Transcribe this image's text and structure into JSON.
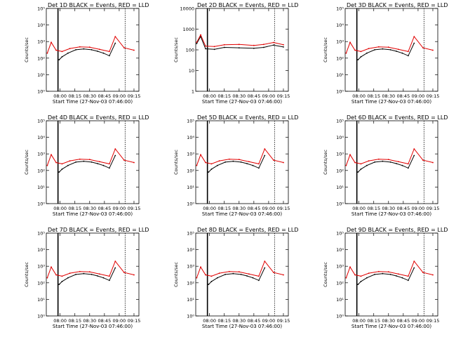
{
  "figure": {
    "xlabel": "Start Time (27-Nov-03 07:46:00)",
    "ylabel": "Counts/sec",
    "x_tick_labels": [
      "08:00",
      "08:15",
      "08:30",
      "08:45",
      "09:00",
      "09:15"
    ],
    "series_colors": {
      "events": "#000000",
      "lld": "#e00000"
    }
  },
  "chart_data": [
    {
      "type": "line",
      "scale": "log",
      "ylim": [
        1,
        100000
      ],
      "title": "Det 1D BLACK = Events, RED = LLD",
      "y_tick_labels": [
        "10⁰",
        "10¹",
        "10²",
        "10³",
        "10⁴",
        "10⁵"
      ],
      "x_range": [
        "07:46",
        "09:20"
      ],
      "x_ticks": [
        "08:00",
        "08:15",
        "08:30",
        "08:45",
        "09:00",
        "09:15"
      ],
      "series": [
        {
          "name": "Events",
          "color": "#000000",
          "x": [
            "07:59",
            "08:02",
            "08:08",
            "08:16",
            "08:24",
            "08:32",
            "08:38",
            "08:44",
            "08:50",
            "08:56"
          ],
          "values": [
            80,
            120,
            200,
            320,
            360,
            320,
            260,
            200,
            140,
            800
          ]
        },
        {
          "name": "LLD",
          "color": "#e00000",
          "x": [
            "07:47",
            "07:51",
            "07:56",
            "08:02",
            "08:10",
            "08:20",
            "08:30",
            "08:40",
            "08:50",
            "08:56",
            "09:05",
            "09:15"
          ],
          "values": [
            200,
            900,
            300,
            250,
            380,
            480,
            460,
            340,
            250,
            2000,
            420,
            300
          ]
        }
      ]
    },
    {
      "type": "line",
      "scale": "log",
      "ylim": [
        1,
        20000
      ],
      "title": "Det 2D BLACK = Events, RED = LLD",
      "y_tick_labels": [
        "1",
        "10",
        "100",
        "1000",
        "10000"
      ],
      "x_range": [
        "07:46",
        "09:20"
      ],
      "x_ticks": [
        "08:00",
        "08:15",
        "08:30",
        "08:45",
        "09:00",
        "09:15"
      ],
      "series": [
        {
          "name": "Events",
          "color": "#000000",
          "x": [
            "07:47",
            "07:51",
            "07:56",
            "08:05",
            "08:15",
            "08:30",
            "08:45",
            "08:55",
            "09:05",
            "09:15"
          ],
          "values": [
            300,
            700,
            160,
            150,
            190,
            180,
            170,
            190,
            250,
            200
          ]
        },
        {
          "name": "LLD",
          "color": "#e00000",
          "x": [
            "07:47",
            "07:51",
            "07:56",
            "08:05",
            "08:15",
            "08:30",
            "08:45",
            "08:55",
            "09:05",
            "09:15"
          ],
          "values": [
            350,
            850,
            220,
            210,
            260,
            270,
            240,
            270,
            340,
            260
          ]
        }
      ]
    },
    {
      "type": "line",
      "scale": "log",
      "ylim": [
        1,
        100000
      ],
      "title": "Det 3D BLACK = Events, RED = LLD",
      "y_tick_labels": [
        "10⁰",
        "10¹",
        "10²",
        "10³",
        "10⁴",
        "10⁵"
      ],
      "x_range": [
        "07:46",
        "09:20"
      ],
      "x_ticks": [
        "08:00",
        "08:15",
        "08:30",
        "08:45",
        "09:00",
        "09:15"
      ],
      "series": [
        {
          "name": "Events",
          "color": "#000000",
          "x": [
            "07:59",
            "08:02",
            "08:08",
            "08:16",
            "08:24",
            "08:32",
            "08:38",
            "08:44",
            "08:50",
            "08:56"
          ],
          "values": [
            80,
            120,
            200,
            320,
            360,
            320,
            260,
            200,
            140,
            800
          ]
        },
        {
          "name": "LLD",
          "color": "#e00000",
          "x": [
            "07:47",
            "07:51",
            "07:56",
            "08:02",
            "08:10",
            "08:20",
            "08:30",
            "08:40",
            "08:50",
            "08:56",
            "09:05",
            "09:15"
          ],
          "values": [
            200,
            900,
            300,
            250,
            380,
            480,
            460,
            340,
            250,
            2000,
            420,
            300
          ]
        }
      ]
    },
    {
      "type": "line",
      "scale": "log",
      "ylim": [
        1,
        100000
      ],
      "title": "Det 4D BLACK = Events, RED = LLD",
      "y_tick_labels": [
        "10⁰",
        "10¹",
        "10²",
        "10³",
        "10⁴",
        "10⁵"
      ],
      "x_range": [
        "07:46",
        "09:20"
      ],
      "x_ticks": [
        "08:00",
        "08:15",
        "08:30",
        "08:45",
        "09:00",
        "09:15"
      ],
      "series": [
        {
          "name": "Events",
          "color": "#000000",
          "x": [
            "07:59",
            "08:02",
            "08:08",
            "08:16",
            "08:24",
            "08:32",
            "08:38",
            "08:44",
            "08:50",
            "08:56"
          ],
          "values": [
            80,
            120,
            200,
            320,
            360,
            320,
            260,
            200,
            140,
            800
          ]
        },
        {
          "name": "LLD",
          "color": "#e00000",
          "x": [
            "07:47",
            "07:51",
            "07:56",
            "08:02",
            "08:10",
            "08:20",
            "08:30",
            "08:40",
            "08:50",
            "08:56",
            "09:05",
            "09:15"
          ],
          "values": [
            200,
            900,
            300,
            250,
            380,
            480,
            460,
            340,
            250,
            2000,
            420,
            300
          ]
        }
      ]
    },
    {
      "type": "line",
      "scale": "log",
      "ylim": [
        1,
        100000
      ],
      "title": "Det 5D BLACK = Events, RED = LLD",
      "y_tick_labels": [
        "10⁰",
        "10¹",
        "10²",
        "10³",
        "10⁴",
        "10⁵"
      ],
      "x_range": [
        "07:46",
        "09:20"
      ],
      "x_ticks": [
        "08:00",
        "08:15",
        "08:30",
        "08:45",
        "09:00",
        "09:15"
      ],
      "series": [
        {
          "name": "Events",
          "color": "#000000",
          "x": [
            "07:59",
            "08:02",
            "08:08",
            "08:16",
            "08:24",
            "08:32",
            "08:38",
            "08:44",
            "08:50",
            "08:56"
          ],
          "values": [
            80,
            120,
            200,
            320,
            360,
            320,
            260,
            200,
            140,
            800
          ]
        },
        {
          "name": "LLD",
          "color": "#e00000",
          "x": [
            "07:47",
            "07:51",
            "07:56",
            "08:02",
            "08:10",
            "08:20",
            "08:30",
            "08:40",
            "08:50",
            "08:56",
            "09:05",
            "09:15"
          ],
          "values": [
            200,
            900,
            300,
            250,
            380,
            480,
            460,
            340,
            250,
            2000,
            420,
            300
          ]
        }
      ]
    },
    {
      "type": "line",
      "scale": "log",
      "ylim": [
        1,
        100000
      ],
      "title": "Det 6D BLACK = Events, RED = LLD",
      "y_tick_labels": [
        "10⁰",
        "10¹",
        "10²",
        "10³",
        "10⁴",
        "10⁵"
      ],
      "x_range": [
        "07:46",
        "09:20"
      ],
      "x_ticks": [
        "08:00",
        "08:15",
        "08:30",
        "08:45",
        "09:00",
        "09:15"
      ],
      "series": [
        {
          "name": "Events",
          "color": "#000000",
          "x": [
            "07:59",
            "08:02",
            "08:08",
            "08:16",
            "08:24",
            "08:32",
            "08:38",
            "08:44",
            "08:50",
            "08:56"
          ],
          "values": [
            80,
            120,
            200,
            320,
            360,
            320,
            260,
            200,
            140,
            800
          ]
        },
        {
          "name": "LLD",
          "color": "#e00000",
          "x": [
            "07:47",
            "07:51",
            "07:56",
            "08:02",
            "08:10",
            "08:20",
            "08:30",
            "08:40",
            "08:50",
            "08:56",
            "09:05",
            "09:15"
          ],
          "values": [
            200,
            900,
            300,
            250,
            380,
            480,
            460,
            340,
            250,
            2000,
            420,
            300
          ]
        }
      ]
    },
    {
      "type": "line",
      "scale": "log",
      "ylim": [
        1,
        100000
      ],
      "title": "Det 7D BLACK = Events, RED = LLD",
      "y_tick_labels": [
        "10⁰",
        "10¹",
        "10²",
        "10³",
        "10⁴",
        "10⁵"
      ],
      "x_range": [
        "07:46",
        "09:20"
      ],
      "x_ticks": [
        "08:00",
        "08:15",
        "08:30",
        "08:45",
        "09:00",
        "09:15"
      ],
      "series": [
        {
          "name": "Events",
          "color": "#000000",
          "x": [
            "07:59",
            "08:02",
            "08:08",
            "08:16",
            "08:24",
            "08:32",
            "08:38",
            "08:44",
            "08:50",
            "08:56"
          ],
          "values": [
            80,
            120,
            200,
            320,
            360,
            320,
            260,
            200,
            140,
            800
          ]
        },
        {
          "name": "LLD",
          "color": "#e00000",
          "x": [
            "07:47",
            "07:51",
            "07:56",
            "08:02",
            "08:10",
            "08:20",
            "08:30",
            "08:40",
            "08:50",
            "08:56",
            "09:05",
            "09:15"
          ],
          "values": [
            200,
            900,
            300,
            250,
            380,
            480,
            460,
            340,
            250,
            2000,
            420,
            300
          ]
        }
      ]
    },
    {
      "type": "line",
      "scale": "log",
      "ylim": [
        1,
        100000
      ],
      "title": "Det 8D BLACK = Events, RED = LLD",
      "y_tick_labels": [
        "10⁰",
        "10¹",
        "10²",
        "10³",
        "10⁴",
        "10⁵"
      ],
      "x_range": [
        "07:46",
        "09:20"
      ],
      "x_ticks": [
        "08:00",
        "08:15",
        "08:30",
        "08:45",
        "09:00",
        "09:15"
      ],
      "series": [
        {
          "name": "Events",
          "color": "#000000",
          "x": [
            "07:59",
            "08:02",
            "08:08",
            "08:16",
            "08:24",
            "08:32",
            "08:38",
            "08:44",
            "08:50",
            "08:56"
          ],
          "values": [
            80,
            120,
            200,
            320,
            360,
            320,
            260,
            200,
            140,
            800
          ]
        },
        {
          "name": "LLD",
          "color": "#e00000",
          "x": [
            "07:47",
            "07:51",
            "07:56",
            "08:02",
            "08:10",
            "08:20",
            "08:30",
            "08:40",
            "08:50",
            "08:56",
            "09:05",
            "09:15"
          ],
          "values": [
            200,
            900,
            300,
            250,
            380,
            480,
            460,
            340,
            250,
            2000,
            420,
            300
          ]
        }
      ]
    },
    {
      "type": "line",
      "scale": "log",
      "ylim": [
        1,
        100000
      ],
      "title": "Det 9D BLACK = Events, RED = LLD",
      "y_tick_labels": [
        "10⁰",
        "10¹",
        "10²",
        "10³",
        "10⁴",
        "10⁵"
      ],
      "x_range": [
        "07:46",
        "09:20"
      ],
      "x_ticks": [
        "08:00",
        "08:15",
        "08:30",
        "08:45",
        "09:00",
        "09:15"
      ],
      "series": [
        {
          "name": "Events",
          "color": "#000000",
          "x": [
            "07:59",
            "08:02",
            "08:08",
            "08:16",
            "08:24",
            "08:32",
            "08:38",
            "08:44",
            "08:50",
            "08:56"
          ],
          "values": [
            80,
            120,
            200,
            320,
            360,
            320,
            260,
            200,
            140,
            800
          ]
        },
        {
          "name": "LLD",
          "color": "#e00000",
          "x": [
            "07:47",
            "07:51",
            "07:56",
            "08:02",
            "08:10",
            "08:20",
            "08:30",
            "08:40",
            "08:50",
            "08:56",
            "09:05",
            "09:15"
          ],
          "values": [
            200,
            900,
            300,
            250,
            380,
            480,
            460,
            340,
            250,
            2000,
            420,
            300
          ]
        }
      ]
    }
  ]
}
